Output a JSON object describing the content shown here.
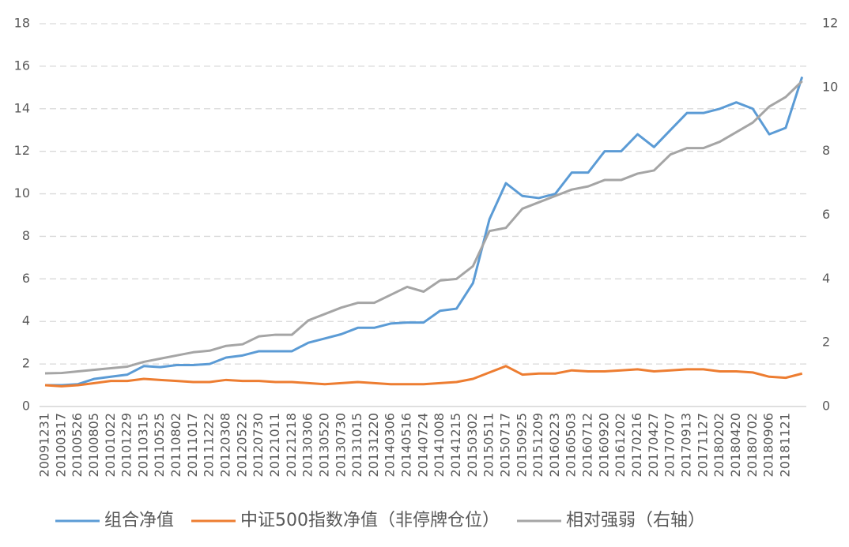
{
  "chart_data": {
    "type": "line",
    "categories": [
      "20091231",
      "20100317",
      "20100526",
      "20100805",
      "20101022",
      "20101229",
      "20110315",
      "20110525",
      "20110802",
      "20111017",
      "20111222",
      "20120308",
      "20120522",
      "20120730",
      "20121011",
      "20121218",
      "20130306",
      "20130520",
      "20130730",
      "20131015",
      "20131220",
      "20140306",
      "20140516",
      "20140724",
      "20141008",
      "20141215",
      "20150302",
      "20150511",
      "20150717",
      "20150925",
      "20151209",
      "20160223",
      "20160503",
      "20160712",
      "20160920",
      "20161202",
      "20170216",
      "20170427",
      "20170707",
      "20170913",
      "20171127",
      "20180202",
      "20180420",
      "20180702",
      "20180906",
      "20181121",
      null
    ],
    "series": [
      {
        "name": "组合净值",
        "color": "#5b9bd5",
        "values": [
          1.0,
          1.0,
          1.05,
          1.3,
          1.4,
          1.5,
          1.9,
          1.85,
          1.95,
          1.95,
          2.0,
          2.3,
          2.4,
          2.6,
          2.6,
          2.6,
          3.0,
          3.2,
          3.4,
          3.7,
          3.7,
          3.9,
          3.95,
          3.95,
          4.5,
          4.6,
          5.8,
          8.8,
          10.5,
          9.9,
          9.8,
          10.0,
          11.0,
          11.0,
          12.0,
          12.0,
          12.8,
          12.2,
          13.0,
          13.8,
          13.8,
          14.0,
          14.3,
          14.0,
          12.8,
          13.1,
          15.5
        ]
      },
      {
        "name": "中证500指数净值（非停牌仓位）",
        "color": "#ed7d31",
        "values": [
          1.0,
          0.95,
          1.0,
          1.1,
          1.2,
          1.2,
          1.3,
          1.25,
          1.2,
          1.15,
          1.15,
          1.25,
          1.2,
          1.2,
          1.15,
          1.15,
          1.1,
          1.05,
          1.1,
          1.15,
          1.1,
          1.05,
          1.05,
          1.05,
          1.1,
          1.15,
          1.3,
          1.6,
          1.9,
          1.5,
          1.55,
          1.55,
          1.7,
          1.65,
          1.65,
          1.7,
          1.75,
          1.65,
          1.7,
          1.75,
          1.75,
          1.65,
          1.65,
          1.6,
          1.4,
          1.35,
          1.55
        ]
      },
      {
        "name": "相对强弱（右轴）",
        "color": "#a5a5a5",
        "axis": "y2",
        "values": [
          1.04,
          1.05,
          1.1,
          1.15,
          1.2,
          1.25,
          1.4,
          1.5,
          1.6,
          1.7,
          1.75,
          1.9,
          1.95,
          2.2,
          2.25,
          2.25,
          2.7,
          2.9,
          3.1,
          3.25,
          3.25,
          3.5,
          3.75,
          3.6,
          3.95,
          4.0,
          4.4,
          5.5,
          5.6,
          6.2,
          6.4,
          6.6,
          6.8,
          6.9,
          7.1,
          7.1,
          7.3,
          7.4,
          7.9,
          8.1,
          8.1,
          8.3,
          8.6,
          8.9,
          9.4,
          9.7,
          10.2
        ]
      }
    ],
    "ylim": [
      0,
      18
    ],
    "yticks": [
      0,
      2,
      4,
      6,
      8,
      10,
      12,
      14,
      16,
      18
    ],
    "y2lim": [
      0,
      12
    ],
    "y2ticks": [
      0,
      2,
      4,
      6,
      8,
      10,
      12
    ],
    "grid": true,
    "legend": "bottom"
  }
}
